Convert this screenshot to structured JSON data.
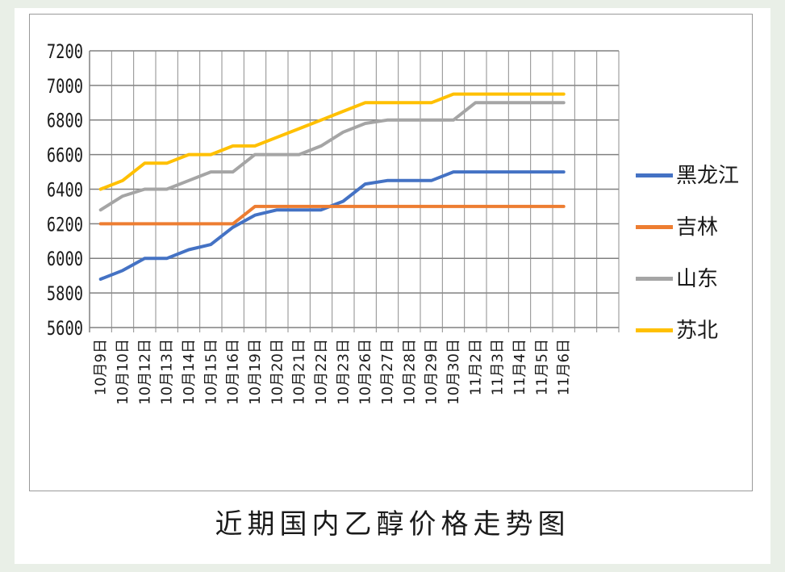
{
  "caption": "近期国内乙醇价格走势图",
  "chart_data": {
    "type": "line",
    "title": "近期国内乙醇价格走势图",
    "categories": [
      "10月9日",
      "10月10日",
      "10月12日",
      "10月13日",
      "10月14日",
      "10月15日",
      "10月16日",
      "10月19日",
      "10月20日",
      "10月21日",
      "10月22日",
      "10月23日",
      "10月26日",
      "10月27日",
      "10月28日",
      "10月29日",
      "10月30日",
      "11月2日",
      "11月3日",
      "11月4日",
      "11月5日",
      "11月6日"
    ],
    "ylim": [
      5600,
      7200
    ],
    "yticks": [
      5600,
      5800,
      6000,
      6200,
      6400,
      6600,
      6800,
      7000,
      7200
    ],
    "grid": true,
    "legend_position": "right",
    "series": [
      {
        "name": "黑龙江",
        "color": "#4472c4",
        "values": [
          5880,
          5930,
          6000,
          6000,
          6050,
          6080,
          6180,
          6250,
          6280,
          6280,
          6280,
          6330,
          6430,
          6450,
          6450,
          6450,
          6500,
          6500,
          6500,
          6500,
          6500,
          6500
        ]
      },
      {
        "name": "吉林",
        "color": "#ed7d31",
        "values": [
          6200,
          6200,
          6200,
          6200,
          6200,
          6200,
          6200,
          6300,
          6300,
          6300,
          6300,
          6300,
          6300,
          6300,
          6300,
          6300,
          6300,
          6300,
          6300,
          6300,
          6300,
          6300
        ]
      },
      {
        "name": "山东",
        "color": "#a5a5a5",
        "values": [
          6280,
          6360,
          6400,
          6400,
          6450,
          6500,
          6500,
          6600,
          6600,
          6600,
          6650,
          6730,
          6780,
          6800,
          6800,
          6800,
          6800,
          6900,
          6900,
          6900,
          6900,
          6900
        ]
      },
      {
        "name": "苏北",
        "color": "#ffc000",
        "values": [
          6400,
          6450,
          6550,
          6550,
          6600,
          6600,
          6650,
          6650,
          6700,
          6750,
          6800,
          6850,
          6900,
          6900,
          6900,
          6900,
          6950,
          6950,
          6950,
          6950,
          6950,
          6950
        ]
      }
    ]
  }
}
